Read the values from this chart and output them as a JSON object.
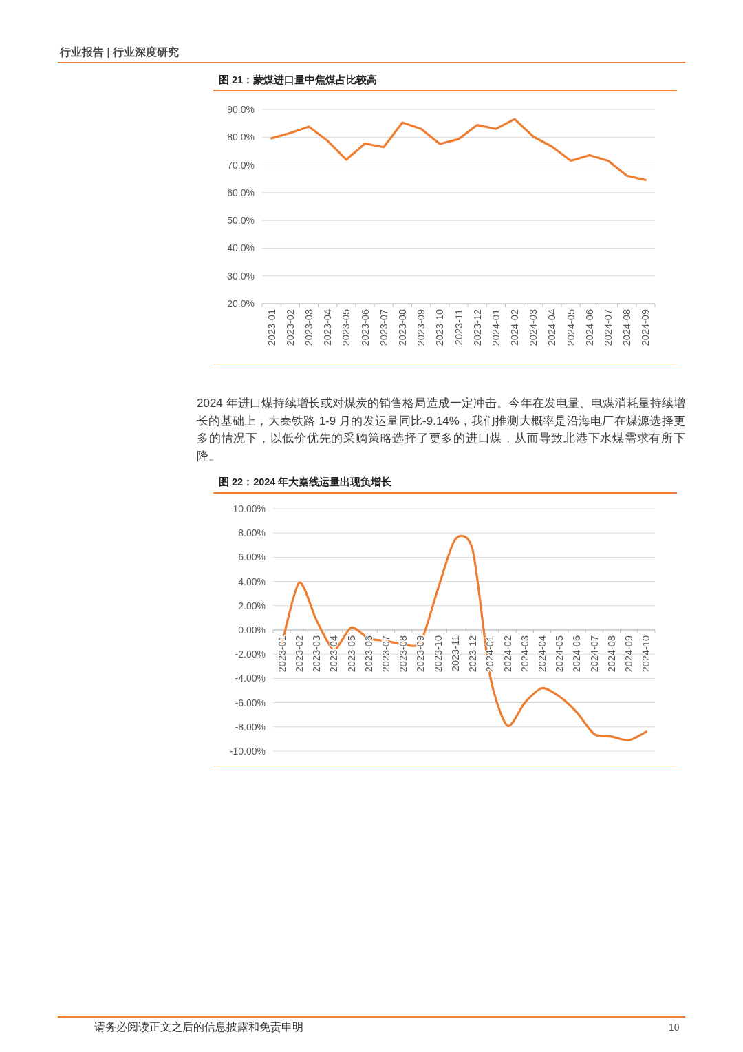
{
  "chart_data": [
    {
      "type": "line",
      "title": "图 21：蒙煤进口量中焦煤占比较高",
      "annotations": [
        "行业报告 | 行业深度研究"
      ],
      "categories": [
        "2023-01",
        "2023-02",
        "2023-03",
        "2023-04",
        "2023-05",
        "2023-06",
        "2023-07",
        "2023-08",
        "2023-09",
        "2023-10",
        "2023-11",
        "2023-12",
        "2024-01",
        "2024-02",
        "2024-03",
        "2024-04",
        "2024-05",
        "2024-06",
        "2024-07",
        "2024-08",
        "2024-09"
      ],
      "values": [
        79.6,
        81.5,
        83.8,
        78.7,
        71.9,
        77.7,
        76.4,
        85.3,
        83.0,
        77.6,
        79.3,
        84.4,
        83.0,
        86.5,
        80.2,
        76.6,
        71.5,
        73.5,
        71.5,
        66.1,
        64.6
      ],
      "color": "#ed7d31",
      "ylim": [
        20,
        90
      ],
      "yticks": [
        {
          "value": 20,
          "label": "20.0%"
        },
        {
          "value": 30,
          "label": "30.0%"
        },
        {
          "value": 40,
          "label": "40.0%"
        },
        {
          "value": 50,
          "label": "50.0%"
        },
        {
          "value": 60,
          "label": "60.0%"
        },
        {
          "value": 70,
          "label": "70.0%"
        },
        {
          "value": 80,
          "label": "80.0%"
        },
        {
          "value": 90,
          "label": "90.0%"
        }
      ],
      "grid": "y"
    },
    {
      "type": "line",
      "title": "图 22：2024 年大秦线运量出现负增长",
      "annotations": [
        "2024 年进口煤持续增长或对煤炭的销售格局造成一定冲击。今年在发电量、电煤消耗量持续增长的基础上，大秦铁路 1-9 月的发运量同比-9.14%，我们推测大概率是沿海电厂在煤源选择更多的情况下，以低价优先的采购策略选择了更多的进口煤，从而导致北港下水煤需求有所下降。",
        "请务必阅读正文之后的信息披露和免责申明",
        "10"
      ],
      "categories": [
        "2023-01",
        "2023-02",
        "2023-03",
        "2023-04",
        "2023-05",
        "2023-06",
        "2023-07",
        "2023-08",
        "2023-09",
        "2023-10",
        "2023-11",
        "2023-12",
        "2024-01",
        "2024-02",
        "2024-03",
        "2024-04",
        "2024-05",
        "2024-06",
        "2024-07",
        "2024-08",
        "2024-09",
        "2024-10"
      ],
      "values": [
        -1.2,
        3.9,
        0.8,
        -1.6,
        0.2,
        -0.7,
        -0.9,
        -1.2,
        -1.0,
        3.4,
        7.5,
        6.6,
        -3.8,
        -7.9,
        -6.0,
        -4.8,
        -5.5,
        -6.8,
        -8.6,
        -8.8,
        -9.1,
        -8.4
      ],
      "color": "#ed7d31",
      "ylim": [
        -10,
        10
      ],
      "yticks": [
        {
          "value": -10,
          "label": "-10.00%"
        },
        {
          "value": -8,
          "label": "-8.00%"
        },
        {
          "value": -6,
          "label": "-6.00%"
        },
        {
          "value": -4,
          "label": "-4.00%"
        },
        {
          "value": -2,
          "label": "-2.00%"
        },
        {
          "value": 0,
          "label": "0.00%"
        },
        {
          "value": 2,
          "label": "2.00%"
        },
        {
          "value": 4,
          "label": "4.00%"
        },
        {
          "value": 6,
          "label": "6.00%"
        },
        {
          "value": 8,
          "label": "8.00%"
        },
        {
          "value": 10,
          "label": "10.00%"
        }
      ],
      "grid": "y"
    }
  ]
}
